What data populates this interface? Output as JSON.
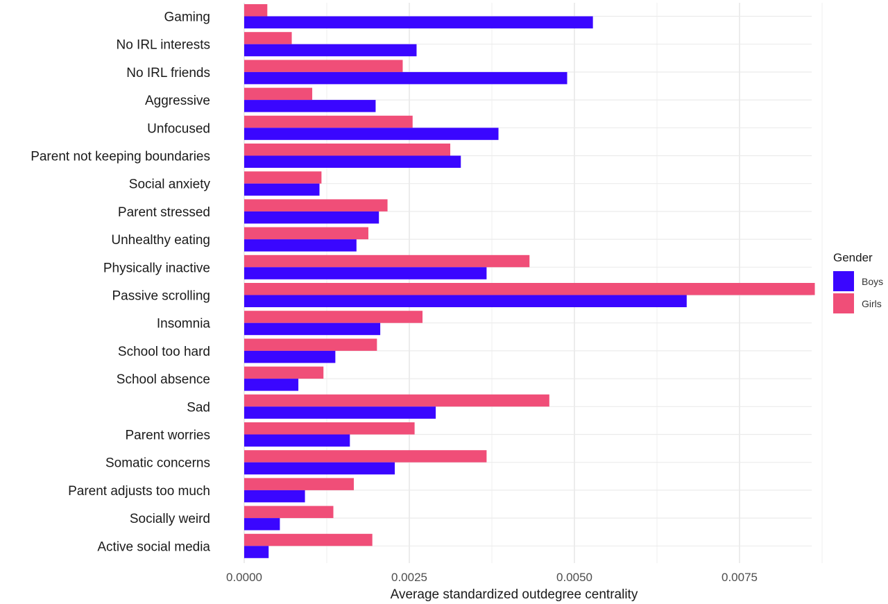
{
  "chart_data": {
    "type": "bar",
    "orientation": "horizontal",
    "title": "",
    "xlabel": "Average standardized outdegree centrality",
    "ylabel": "",
    "xlim": [
      0,
      0.009
    ],
    "x_ticks": [
      0,
      0.0025,
      0.005,
      0.0075
    ],
    "x_tick_labels": [
      "0.0000",
      "0.0025",
      "0.0050",
      "0.0075"
    ],
    "grid": true,
    "categories": [
      "Gaming",
      "No IRL interests",
      "No IRL friends",
      "Aggressive",
      "Unfocused",
      "Parent not keeping boundaries",
      "Social anxiety",
      "Parent stressed",
      "Unhealthy eating",
      "Physically inactive",
      "Passive scrolling",
      "Insomnia",
      "School too hard",
      "School absence",
      "Sad",
      "Parent worries",
      "Somatic concerns",
      "Parent adjusts too much",
      "Socially weird",
      "Active social media"
    ],
    "series": [
      {
        "name": "Girls",
        "color": "#f04e78",
        "values": [
          0.00035,
          0.00072,
          0.0024,
          0.00103,
          0.00255,
          0.00312,
          0.00117,
          0.00217,
          0.00188,
          0.00432,
          0.00864,
          0.0027,
          0.00201,
          0.0012,
          0.00462,
          0.00258,
          0.00367,
          0.00166,
          0.00135,
          0.00194
        ]
      },
      {
        "name": "Boys",
        "color": "#3a06ff",
        "values": [
          0.00528,
          0.00261,
          0.00489,
          0.00199,
          0.00385,
          0.00328,
          0.00114,
          0.00204,
          0.0017,
          0.00367,
          0.0067,
          0.00206,
          0.00138,
          0.00082,
          0.0029,
          0.0016,
          0.00228,
          0.00092,
          0.00054,
          0.00037
        ]
      }
    ],
    "legend": {
      "title": "Gender",
      "position": "right",
      "entries": [
        {
          "name": "Boys",
          "color": "#3a06ff"
        },
        {
          "name": "Girls",
          "color": "#f04e78"
        }
      ]
    }
  }
}
